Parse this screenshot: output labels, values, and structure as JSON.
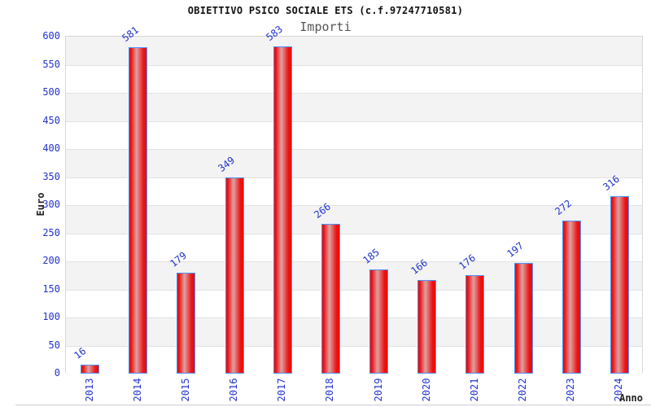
{
  "chart_data": {
    "type": "bar",
    "title": "OBIETTIVO PSICO SOCIALE ETS (c.f.97247710581)",
    "subtitle": "Importi",
    "xlabel": "Anno",
    "ylabel": "Euro",
    "categories": [
      "2013",
      "2014",
      "2015",
      "2016",
      "2017",
      "2018",
      "2019",
      "2020",
      "2021",
      "2022",
      "2023",
      "2024"
    ],
    "values": [
      16,
      581,
      179,
      349,
      583,
      266,
      185,
      166,
      176,
      197,
      272,
      316
    ],
    "ylim": [
      0,
      600
    ],
    "ytick_step": 50,
    "ytick_labels": [
      "0",
      "50",
      "100",
      "150",
      "200",
      "250",
      "300",
      "350",
      "400",
      "450",
      "500",
      "550",
      "600"
    ],
    "legend": "none",
    "grid": "alternating horizontal bands every 50 units, gray band at top interval"
  },
  "colors": {
    "tick_label_blue": "#2233cc",
    "value_label_blue": "#2233cc",
    "band_gray": "#f3f3f3",
    "band_white": "#ffffff",
    "grid_line": "#e2e2e2",
    "plot_border": "#d8d8d8",
    "bar_red_edge": "#e00d0d",
    "bar_red": "#ee1414",
    "bar_highlight": "#dca2a2",
    "bar_border_blue": "#4d94ff",
    "title_black": "#111111",
    "subtitle_gray": "#555555",
    "axis_title_dark": "#222222",
    "bottom_rule_gray": "#cccccc"
  }
}
